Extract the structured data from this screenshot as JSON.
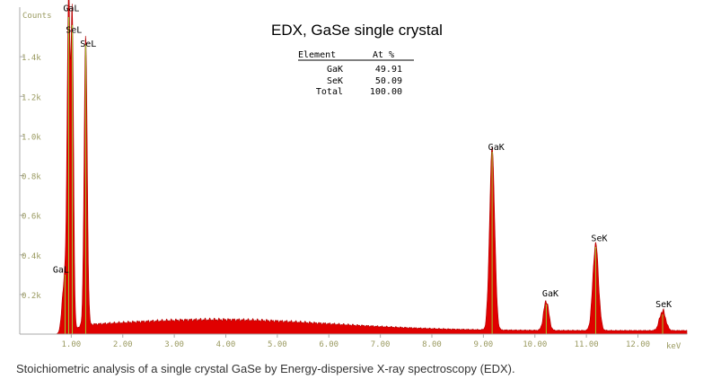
{
  "chart_data": {
    "type": "area",
    "title": "EDX, GaSe single crystal",
    "ylabel": "Counts",
    "xunit": "keV",
    "xlim": [
      0.0,
      12.95
    ],
    "ylim": [
      0,
      1650
    ],
    "x_ticks": [
      "1.00",
      "2.00",
      "3.00",
      "4.00",
      "5.00",
      "6.00",
      "7.00",
      "8.00",
      "9.00",
      "10.00",
      "11.00",
      "12.00"
    ],
    "x_tick_values": [
      1,
      2,
      3,
      4,
      5,
      6,
      7,
      8,
      9,
      10,
      11,
      12
    ],
    "y_ticks": [
      "0.2k",
      "0.4k",
      "0.6k",
      "0.8k",
      "1.0k",
      "1.2k",
      "1.4k"
    ],
    "y_tick_values": [
      200,
      400,
      600,
      800,
      1000,
      1200,
      1400
    ],
    "peaks": [
      {
        "label": "GaL",
        "energy": 0.95,
        "counts": 1600,
        "sigma": 0.028
      },
      {
        "label": "GaL",
        "energy": 0.88,
        "counts": 300,
        "sigma": 0.05
      },
      {
        "label": "SeL",
        "energy": 1.02,
        "counts": 1560,
        "sigma": 0.025
      },
      {
        "label": "SeL",
        "energy": 1.28,
        "counts": 1460,
        "sigma": 0.03
      },
      {
        "label": "GaK",
        "energy": 9.17,
        "counts": 920,
        "sigma": 0.05
      },
      {
        "label": "GaK",
        "energy": 10.22,
        "counts": 150,
        "sigma": 0.05
      },
      {
        "label": "SeK",
        "energy": 11.18,
        "counts": 440,
        "sigma": 0.055
      },
      {
        "label": "SeK",
        "energy": 12.48,
        "counts": 100,
        "sigma": 0.06
      }
    ],
    "peak_labels": [
      {
        "text": "GaL",
        "energy": 1.0,
        "counts": 1630
      },
      {
        "text": "SeL",
        "energy": 1.05,
        "counts": 1520
      },
      {
        "text": "SeL",
        "energy": 1.33,
        "counts": 1450
      },
      {
        "text": "GaL",
        "energy": 0.8,
        "counts": 310
      },
      {
        "text": "GaK",
        "energy": 9.25,
        "counts": 930
      },
      {
        "text": "GaK",
        "energy": 10.3,
        "counts": 190
      },
      {
        "text": "SeK",
        "energy": 11.25,
        "counts": 470
      },
      {
        "text": "SeK",
        "energy": 12.5,
        "counts": 135
      }
    ],
    "fill_color": "#e00000",
    "marker_color": "#9acd32",
    "table": {
      "headers": [
        "Element",
        "At %"
      ],
      "rows": [
        [
          "GaK",
          "49.91"
        ],
        [
          "SeK",
          "50.09"
        ],
        [
          "Total",
          "100.00"
        ]
      ]
    }
  },
  "caption": "Stoichiometric analysis of a single crystal GaSe by Energy-dispersive X-ray spectroscopy (EDX)."
}
